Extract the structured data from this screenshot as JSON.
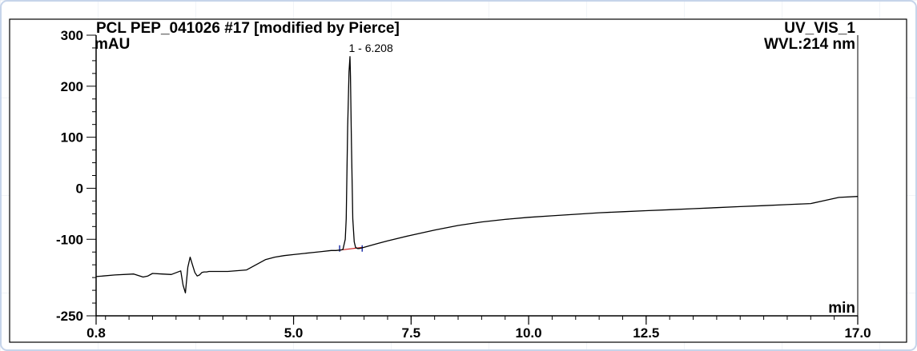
{
  "header": {
    "title": "PCL PEP_041026 #17 [modified by Pierce]",
    "channel": "UV_VIS_1",
    "wavelength": "WVL:214 nm"
  },
  "chart_data": {
    "type": "line",
    "title": "PCL PEP_041026 #17 [modified by Pierce]",
    "xlabel": "min",
    "ylabel": "mAU",
    "xlim": [
      0.8,
      17.0
    ],
    "ylim": [
      -250,
      300
    ],
    "x_ticks": [
      0.8,
      5.0,
      7.5,
      10.0,
      12.5,
      17.0
    ],
    "x_tick_labels": [
      "0.8",
      "5.0",
      "7.5",
      "10.0",
      "12.5",
      "17.0"
    ],
    "y_ticks": [
      300,
      200,
      100,
      0,
      -100,
      -250
    ],
    "y_tick_labels": [
      "300",
      "200",
      "100",
      "0",
      "-100",
      "-250"
    ],
    "grid": false,
    "series": [
      {
        "color": "#000000",
        "x": [
          0.8,
          1.2,
          1.6,
          1.8,
          1.9,
          2.0,
          2.2,
          2.4,
          2.6,
          2.65,
          2.7,
          2.75,
          2.8,
          2.85,
          2.9,
          2.95,
          3.0,
          3.05,
          3.1,
          3.15,
          3.2,
          3.25,
          3.3,
          3.4,
          3.6,
          4.0,
          4.2,
          4.4,
          4.6,
          4.8,
          5.0,
          5.2,
          5.4,
          5.6,
          5.8,
          5.9,
          6.0,
          6.05,
          6.1,
          6.12,
          6.15,
          6.18,
          6.2,
          6.21,
          6.23,
          6.26,
          6.29,
          6.32,
          6.36,
          6.4,
          6.45,
          6.6,
          6.8,
          7.0,
          7.5,
          8.0,
          8.5,
          9.0,
          9.5,
          10.0,
          10.5,
          11.0,
          11.5,
          12.0,
          12.5,
          13.0,
          13.5,
          14.0,
          14.5,
          15.0,
          15.5,
          16.0,
          16.3,
          16.6,
          17.0
        ],
        "y": [
          -173,
          -170,
          -168,
          -174,
          -172,
          -167,
          -168,
          -169,
          -162,
          -190,
          -205,
          -155,
          -135,
          -150,
          -165,
          -172,
          -170,
          -165,
          -164,
          -164,
          -163,
          -163,
          -163,
          -163,
          -163,
          -160,
          -150,
          -140,
          -135,
          -132,
          -130,
          -128,
          -126,
          -124,
          -122,
          -122,
          -121,
          -120,
          -100,
          -60,
          120,
          228,
          258,
          220,
          90,
          -60,
          -105,
          -116,
          -118,
          -118,
          -117,
          -113,
          -108,
          -103,
          -92,
          -82,
          -73,
          -66,
          -61,
          -57,
          -54,
          -51,
          -48,
          -46,
          -44,
          -42,
          -40,
          -38,
          -36,
          -34,
          -32,
          -30,
          -24,
          -18,
          -16
        ]
      }
    ],
    "baseline_segment": {
      "x": [
        6.0,
        6.45
      ],
      "y": [
        -121,
        -116
      ],
      "color": "#cc2222"
    },
    "peak_markers": [
      {
        "x": 5.98,
        "y": -118
      },
      {
        "x": 6.46,
        "y": -118
      }
    ],
    "annotations": [
      {
        "text": "1 - 6.208",
        "x": 6.208,
        "y": 258
      }
    ]
  }
}
